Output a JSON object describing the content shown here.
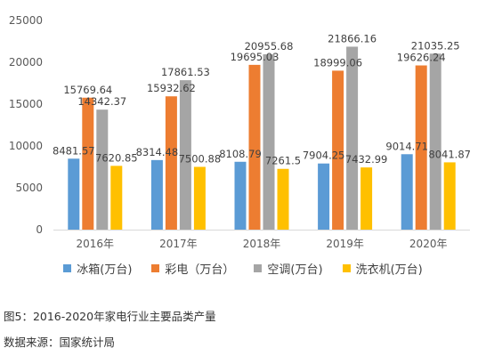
{
  "chart_data": {
    "type": "bar",
    "categories": [
      "2016年",
      "2017年",
      "2018年",
      "2019年",
      "2020年"
    ],
    "series": [
      {
        "name": "冰箱(万台)",
        "color": "#5b9bd5",
        "values": [
          8481.57,
          8314.48,
          8108.79,
          7904.25,
          9014.71
        ],
        "labels": [
          "8481.57",
          "8314.48",
          "8108.79",
          "7904.25",
          "9014.71"
        ]
      },
      {
        "name": "彩电（万台）",
        "color": "#ed7d31",
        "values": [
          15769.64,
          15932.62,
          19695.03,
          18999.06,
          19626.24
        ],
        "labels": [
          "15769.64",
          "15932.62",
          "19695.03",
          "18999.06",
          "19626.24"
        ]
      },
      {
        "name": "空调(万台)",
        "color": "#a5a5a5",
        "values": [
          14342.37,
          17861.53,
          20955.68,
          21866.16,
          21035.25
        ],
        "labels": [
          "14342.37",
          "17861.53",
          "20955.68",
          "21866.16",
          "21035.25"
        ]
      },
      {
        "name": "洗衣机(万台)",
        "color": "#ffc000",
        "values": [
          7620.85,
          7500.88,
          7261.5,
          7432.99,
          8041.87
        ],
        "labels": [
          "7620.85",
          "7500.88",
          "7261.5",
          "7432.99",
          "8041.87"
        ]
      }
    ],
    "yticks": [
      "0",
      "5000",
      "10000",
      "15000",
      "20000",
      "25000"
    ],
    "ylim": [
      0,
      25000
    ],
    "grid": false,
    "legend_position": "bottom"
  },
  "caption": {
    "figure": "图5：2016-2020年家电行业主要品类产量",
    "source": "数据来源：国家统计局"
  }
}
